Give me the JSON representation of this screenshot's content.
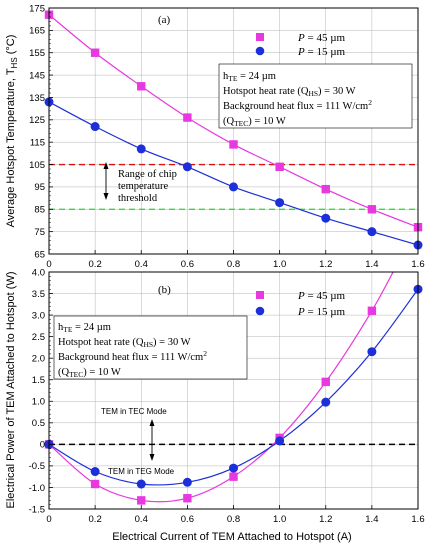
{
  "xlabel": "Electrical Current of TEM Attached to Hotspot (A)",
  "colors": {
    "p45": "#e838e0",
    "p15": "#1c2fd8",
    "red_line": "#e01010",
    "green_line": "#30e030",
    "zero_line": "#000000"
  },
  "chart_data": [
    {
      "type": "line",
      "panel_label": "(a)",
      "ylabel": "Average Hotspot Temperature, T_HS (°C)",
      "xlim": [
        0,
        1.6
      ],
      "ylim": [
        65,
        175
      ],
      "x_ticks": [
        "0",
        "0.2",
        "0.4",
        "0.6",
        "0.8",
        "1.0",
        "1.2",
        "1.4",
        "1.6"
      ],
      "y_ticks": [
        "65",
        "75",
        "85",
        "95",
        "105",
        "115",
        "125",
        "135",
        "145",
        "155",
        "165",
        "175"
      ],
      "x": [
        0,
        0.2,
        0.4,
        0.6,
        0.8,
        1.0,
        1.2,
        1.4,
        1.6
      ],
      "series": [
        {
          "name": "P = 45 µm",
          "marker": "square",
          "color": "#e838e0",
          "values": [
            172,
            155,
            140,
            126,
            114,
            104,
            94,
            85,
            77
          ]
        },
        {
          "name": "P = 15 µm",
          "marker": "circle",
          "color": "#1c2fd8",
          "values": [
            133,
            122,
            112,
            104,
            95,
            88,
            81,
            75,
            69
          ]
        }
      ],
      "hlines": [
        {
          "y": 105,
          "color": "#e01010",
          "style": "dashed"
        },
        {
          "y": 85,
          "color": "#30e030",
          "style": "dashed"
        }
      ],
      "legend_position": "top-right",
      "annotation_box": [
        {
          "base": "h",
          "sub": "TE",
          "rest": " = 24 µm"
        },
        {
          "base": "Hotspot heat rate (Q",
          "sub": "HS",
          "rest": ") = 30 W"
        },
        {
          "base": "Background heat flux = 111 W/cm",
          "sup": "2"
        },
        {
          "base": "(Q",
          "sub": "TEC",
          "rest": ") = 10 W"
        }
      ],
      "range_label": [
        "Range of chip",
        "temperature",
        "threshold"
      ]
    },
    {
      "type": "line",
      "panel_label": "(b)",
      "ylabel": "Electrical Power of TEM Attached to Hotspot (W)",
      "xlim": [
        0,
        1.6
      ],
      "ylim": [
        -1.5,
        4.0
      ],
      "x_ticks": [
        "0",
        "0.2",
        "0.4",
        "0.6",
        "0.8",
        "1.0",
        "1.2",
        "1.4",
        "1.6"
      ],
      "y_ticks": [
        "-1.5",
        "-1.0",
        "-0.5",
        "0",
        "0.5",
        "1.0",
        "1.5",
        "2.0",
        "2.5",
        "3.0",
        "3.5",
        "4.0"
      ],
      "x": [
        0,
        0.2,
        0.4,
        0.6,
        0.8,
        1.0,
        1.2,
        1.4,
        1.6
      ],
      "series": [
        {
          "name": "P = 45 µm",
          "marker": "square",
          "color": "#e838e0",
          "values": [
            0.0,
            -0.92,
            -1.3,
            -1.25,
            -0.75,
            0.15,
            1.45,
            3.1,
            null
          ]
        },
        {
          "name": "P = 15 µm",
          "marker": "circle",
          "color": "#1c2fd8",
          "values": [
            0.0,
            -0.63,
            -0.92,
            -0.88,
            -0.55,
            0.08,
            0.98,
            2.15,
            3.6
          ]
        }
      ],
      "hlines": [
        {
          "y": 0,
          "color": "#000000",
          "style": "dashed"
        }
      ],
      "legend_position": "top-right",
      "annotation_box": [
        {
          "base": "h",
          "sub": "TE",
          "rest": " = 24 µm"
        },
        {
          "base": "Hotspot heat rate (Q",
          "sub": "HS",
          "rest": ") = 30 W"
        },
        {
          "base": "Background heat flux = 111 W/cm",
          "sup": "2"
        },
        {
          "base": "(Q",
          "sub": "TEC",
          "rest": ") = 10 W"
        }
      ],
      "mode_labels": [
        "TEM in TEC Mode",
        "TEM in TEG Mode"
      ]
    }
  ]
}
